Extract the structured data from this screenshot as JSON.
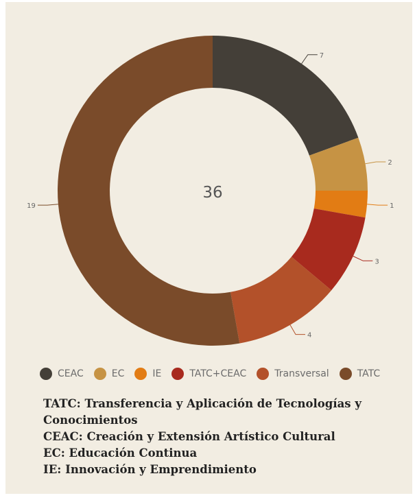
{
  "chart_data": {
    "type": "pie",
    "donut": true,
    "center_total": "36",
    "series": [
      {
        "name": "CEAC",
        "value": 7,
        "color": "#443f38"
      },
      {
        "name": "EC",
        "value": 2,
        "color": "#c69344"
      },
      {
        "name": "IE",
        "value": 1,
        "color": "#e27c14"
      },
      {
        "name": "TATC+CEAC",
        "value": 3,
        "color": "#a82a1e"
      },
      {
        "name": "Transversal",
        "value": 4,
        "color": "#b3512a"
      },
      {
        "name": "TATC",
        "value": 19,
        "color": "#7a4b2a"
      }
    ],
    "legend_position": "bottom"
  },
  "notes": [
    "TATC: Transferencia y Aplicación de Tecnologías y Conocimientos",
    "CEAC: Creación y Extensión Artístico Cultural",
    "EC: Educación Continua",
    "IE: Innovación y Emprendimiento"
  ],
  "colors": {
    "background": "#f2ede2"
  }
}
